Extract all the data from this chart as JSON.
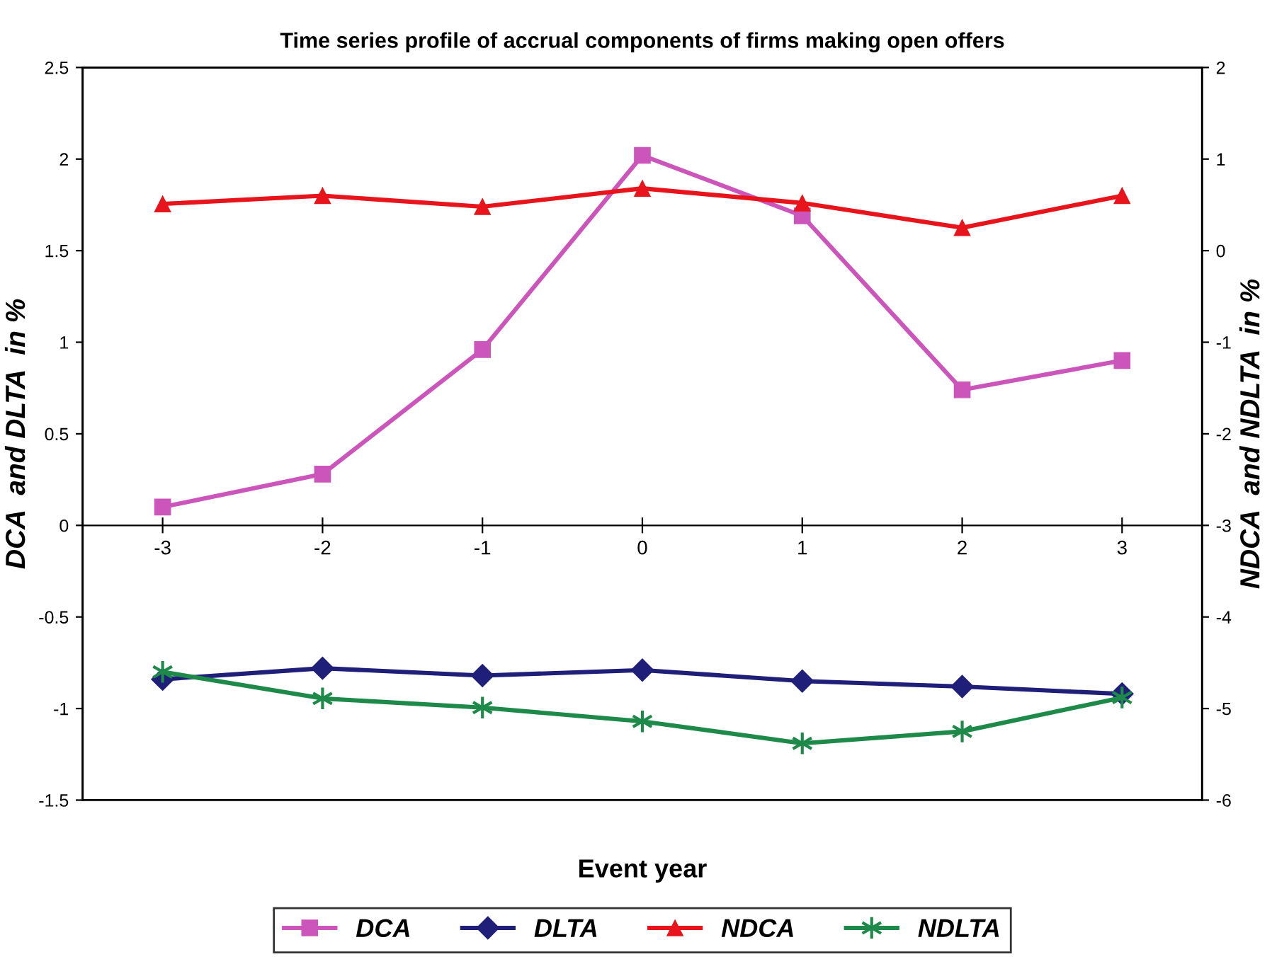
{
  "chart_data": {
    "type": "line",
    "title": "Time series profile of accrual components of firms making open offers",
    "xlabel": "Event year",
    "ylabel": "DCA  and DLTA  in %",
    "y2label": "NDCA  and NDLTA  in %",
    "categories": [
      "-3",
      "-2",
      "-1",
      "0",
      "1",
      "2",
      "3"
    ],
    "series": [
      {
        "name": "DCA",
        "color": "#cc55bb",
        "marker": "square",
        "values": [
          0.1,
          0.28,
          0.96,
          2.02,
          1.69,
          0.74,
          0.9
        ]
      },
      {
        "name": "DLTA",
        "color": "#1f1f7a",
        "marker": "diamond",
        "values": [
          -0.84,
          -0.78,
          -0.82,
          -0.79,
          -0.85,
          -0.88,
          -0.92
        ]
      },
      {
        "name": "NDCA",
        "color": "#e8141c",
        "marker": "triangle",
        "axis": "y2",
        "values": [
          0.51,
          0.6,
          0.48,
          0.68,
          0.52,
          0.25,
          0.6
        ]
      },
      {
        "name": "NDLTA",
        "color": "#1e8a4a",
        "marker": "cross",
        "axis": "y2",
        "values": [
          -4.6,
          -4.89,
          -4.99,
          -5.14,
          -5.38,
          -5.25,
          -4.88
        ]
      }
    ],
    "ylim": [
      -1.5,
      2.5
    ],
    "yticks": [
      -1.5,
      -1,
      -0.5,
      0,
      0.5,
      1,
      1.5,
      2,
      2.5
    ],
    "y2lim": [
      -6,
      2
    ],
    "y2ticks": [
      -6,
      -5,
      -4,
      -3,
      -2,
      -1,
      0,
      1,
      2
    ],
    "grid": false,
    "legend": "bottom",
    "line_style": "solid"
  }
}
